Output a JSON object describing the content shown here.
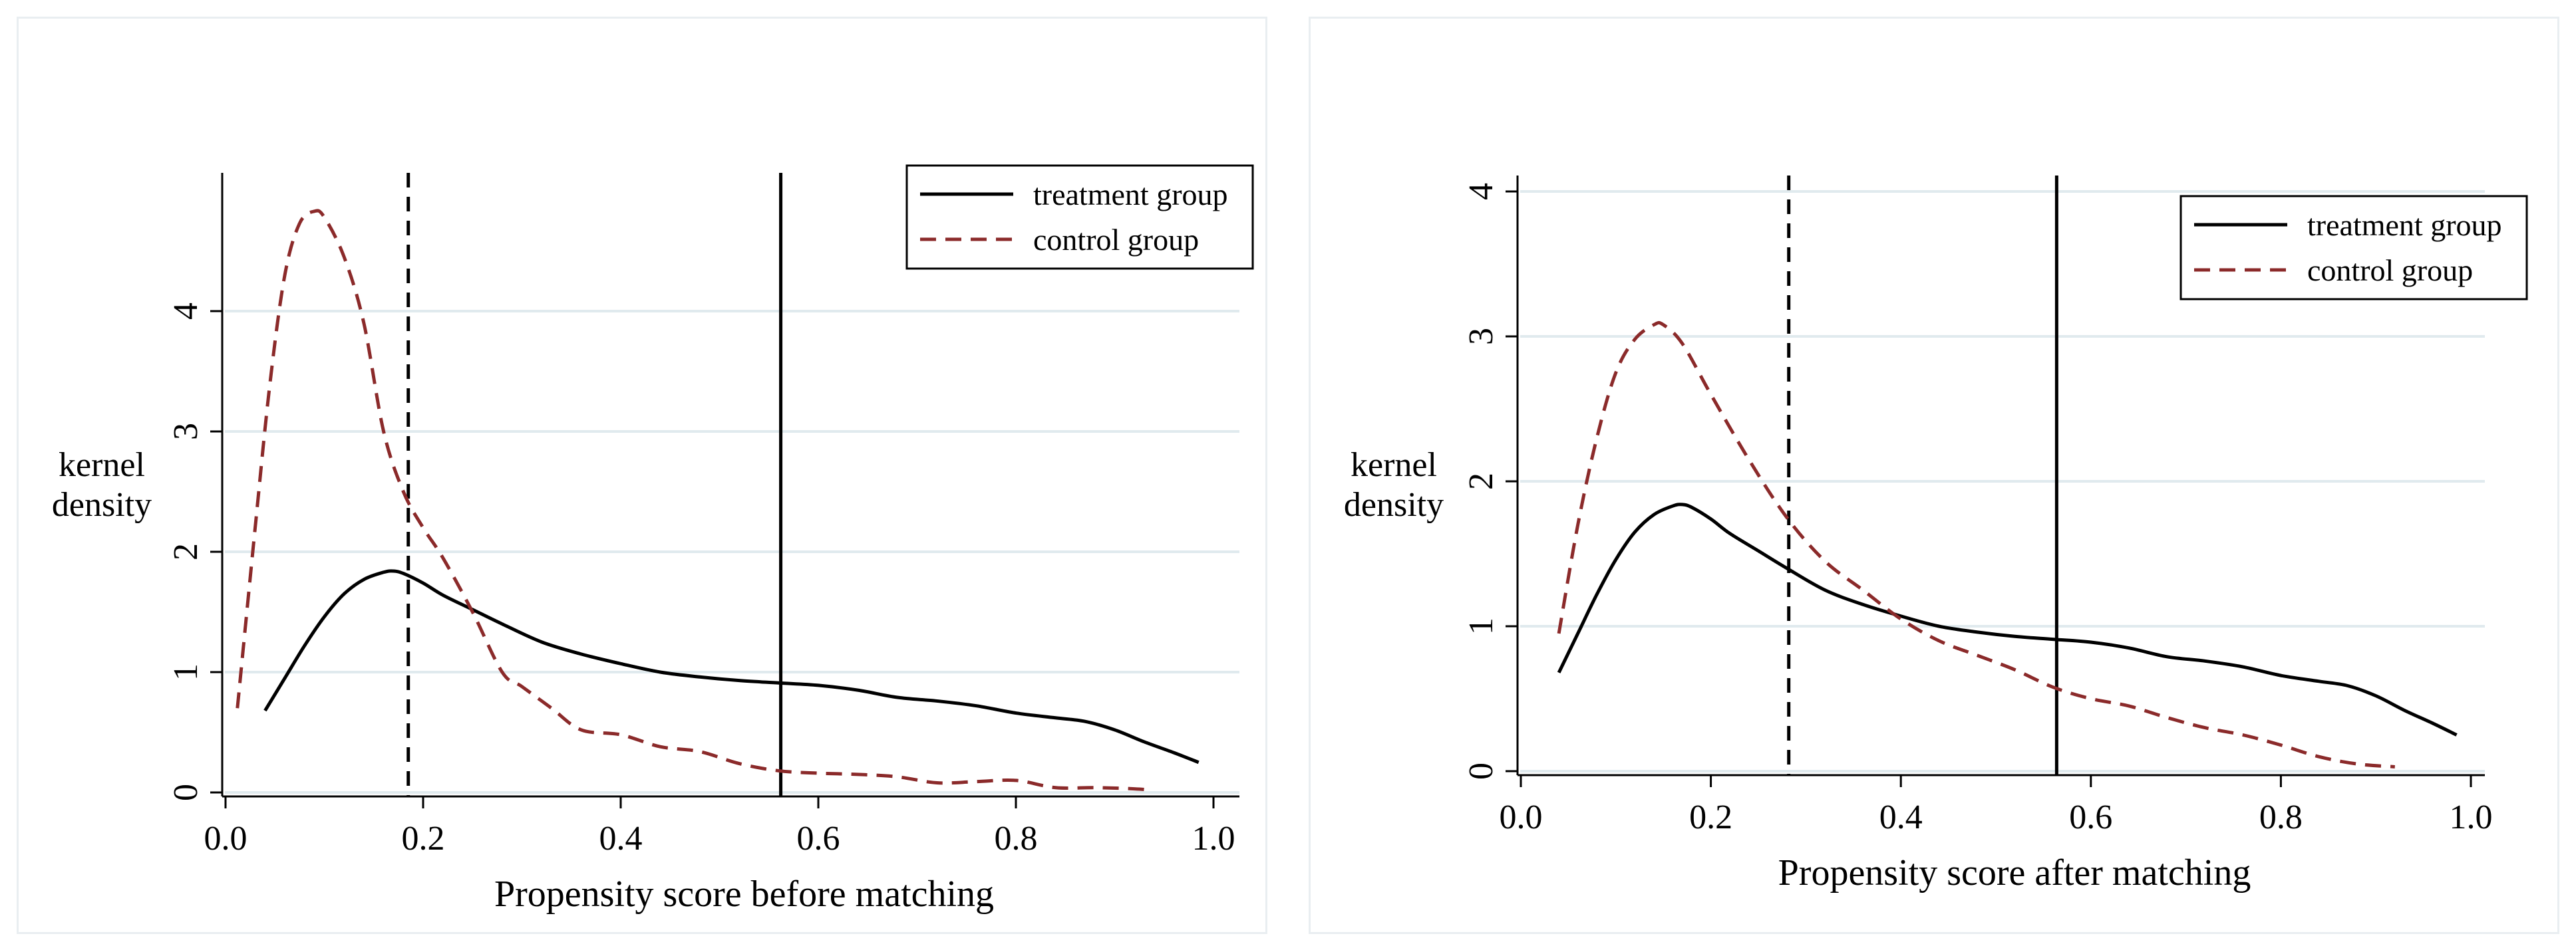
{
  "colors": {
    "treatment": "#000000",
    "control": "#8b2a2a",
    "grid": "#e0eaee",
    "panel_border": "#e9eef1"
  },
  "chart_data": [
    {
      "type": "line",
      "title": "",
      "xlabel": "Propensity score before matching",
      "ylabel_lines": [
        "kernel",
        "density"
      ],
      "xlim": [
        0.0,
        1.0
      ],
      "ylim": [
        0,
        5
      ],
      "xticks": [
        "0.0",
        "0.2",
        "0.4",
        "0.6",
        "0.8",
        "1.0"
      ],
      "yticks": [
        "0",
        "1",
        "2",
        "3",
        "4"
      ],
      "grid": true,
      "legend_position": "top-right",
      "vlines": [
        {
          "x": 0.185,
          "style": "dashed",
          "label": "control group mean"
        },
        {
          "x": 0.562,
          "style": "solid",
          "label": "treatment group mean"
        }
      ],
      "series": [
        {
          "name": "treatment group",
          "style": "solid",
          "x": [
            0.04,
            0.06,
            0.08,
            0.1,
            0.12,
            0.14,
            0.16,
            0.17,
            0.18,
            0.2,
            0.22,
            0.25,
            0.28,
            0.32,
            0.36,
            0.4,
            0.44,
            0.48,
            0.52,
            0.56,
            0.6,
            0.64,
            0.68,
            0.72,
            0.76,
            0.8,
            0.84,
            0.87,
            0.9,
            0.93,
            0.96,
            0.985
          ],
          "y": [
            0.68,
            0.95,
            1.22,
            1.46,
            1.65,
            1.77,
            1.83,
            1.84,
            1.82,
            1.74,
            1.64,
            1.52,
            1.4,
            1.25,
            1.15,
            1.07,
            1.0,
            0.96,
            0.93,
            0.91,
            0.89,
            0.85,
            0.79,
            0.76,
            0.72,
            0.66,
            0.62,
            0.59,
            0.52,
            0.42,
            0.33,
            0.25
          ]
        },
        {
          "name": "control group",
          "style": "dashed",
          "x": [
            0.012,
            0.03,
            0.045,
            0.06,
            0.075,
            0.09,
            0.1,
            0.12,
            0.14,
            0.16,
            0.18,
            0.2,
            0.22,
            0.25,
            0.28,
            0.3,
            0.33,
            0.36,
            0.4,
            0.44,
            0.48,
            0.52,
            0.56,
            0.6,
            0.64,
            0.68,
            0.72,
            0.76,
            0.8,
            0.84,
            0.88,
            0.92,
            0.935
          ],
          "y": [
            0.7,
            2.2,
            3.4,
            4.3,
            4.73,
            4.83,
            4.78,
            4.45,
            3.9,
            3.0,
            2.5,
            2.2,
            1.95,
            1.5,
            1.0,
            0.88,
            0.7,
            0.52,
            0.48,
            0.38,
            0.34,
            0.24,
            0.18,
            0.16,
            0.15,
            0.13,
            0.08,
            0.09,
            0.1,
            0.04,
            0.04,
            0.03,
            0.02
          ]
        }
      ]
    },
    {
      "type": "line",
      "title": "",
      "xlabel": "Propensity score after matching",
      "ylabel_lines": [
        "kernel",
        "density"
      ],
      "xlim": [
        0.0,
        1.0
      ],
      "ylim": [
        0,
        4
      ],
      "xticks": [
        "0.0",
        "0.2",
        "0.4",
        "0.6",
        "0.8",
        "1.0"
      ],
      "yticks": [
        "0",
        "1",
        "2",
        "3",
        "4"
      ],
      "grid": true,
      "legend_position": "top-right",
      "vlines": [
        {
          "x": 0.282,
          "style": "dashed",
          "label": "control group mean"
        },
        {
          "x": 0.564,
          "style": "solid",
          "label": "treatment group mean"
        }
      ],
      "series": [
        {
          "name": "treatment group",
          "style": "solid",
          "x": [
            0.04,
            0.06,
            0.08,
            0.1,
            0.12,
            0.14,
            0.16,
            0.17,
            0.18,
            0.2,
            0.22,
            0.25,
            0.28,
            0.32,
            0.36,
            0.4,
            0.44,
            0.48,
            0.52,
            0.56,
            0.6,
            0.64,
            0.68,
            0.72,
            0.76,
            0.8,
            0.84,
            0.87,
            0.9,
            0.93,
            0.96,
            0.985
          ],
          "y": [
            0.68,
            0.95,
            1.22,
            1.46,
            1.65,
            1.77,
            1.83,
            1.84,
            1.82,
            1.74,
            1.64,
            1.52,
            1.4,
            1.25,
            1.15,
            1.07,
            1.0,
            0.96,
            0.93,
            0.91,
            0.89,
            0.85,
            0.79,
            0.76,
            0.72,
            0.66,
            0.62,
            0.59,
            0.52,
            0.42,
            0.33,
            0.25
          ]
        },
        {
          "name": "control group",
          "style": "dashed",
          "x": [
            0.04,
            0.06,
            0.08,
            0.1,
            0.12,
            0.14,
            0.15,
            0.17,
            0.2,
            0.24,
            0.28,
            0.32,
            0.36,
            0.4,
            0.44,
            0.48,
            0.52,
            0.56,
            0.6,
            0.64,
            0.68,
            0.72,
            0.76,
            0.8,
            0.84,
            0.88,
            0.92
          ],
          "y": [
            0.95,
            1.7,
            2.3,
            2.75,
            2.98,
            3.08,
            3.08,
            2.95,
            2.6,
            2.15,
            1.75,
            1.45,
            1.25,
            1.05,
            0.9,
            0.8,
            0.7,
            0.58,
            0.5,
            0.45,
            0.37,
            0.3,
            0.25,
            0.18,
            0.1,
            0.05,
            0.03
          ]
        }
      ]
    }
  ]
}
